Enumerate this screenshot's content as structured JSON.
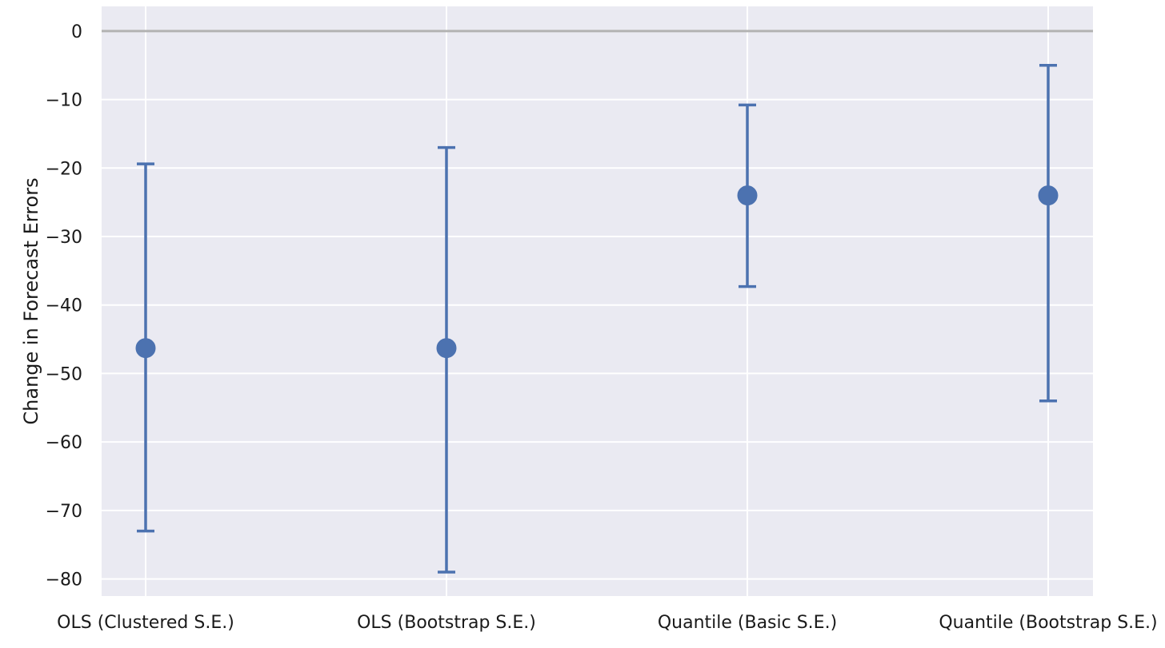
{
  "chart_data": {
    "type": "scatter",
    "chart_kind": "point estimates with error bars",
    "title": "",
    "xlabel": "",
    "ylabel": "Change in Forecast Errors",
    "categories": [
      "OLS (Clustered S.E.)",
      "OLS (Bootstrap S.E.)",
      "Quantile (Basic S.E.)",
      "Quantile (Bootstrap S.E.)"
    ],
    "points": [
      {
        "category": "OLS (Clustered S.E.)",
        "estimate": -46.3,
        "lower": -73.0,
        "upper": -19.4
      },
      {
        "category": "OLS (Bootstrap S.E.)",
        "estimate": -46.3,
        "lower": -79.0,
        "upper": -17.0
      },
      {
        "category": "Quantile (Basic S.E.)",
        "estimate": -24.0,
        "lower": -37.3,
        "upper": -10.8
      },
      {
        "category": "Quantile (Bootstrap S.E.)",
        "estimate": -24.0,
        "lower": -54.0,
        "upper": -5.0
      }
    ],
    "yticks": [
      0,
      -10,
      -20,
      -30,
      -40,
      -50,
      -60,
      -70,
      -80
    ],
    "ytick_labels": [
      "0",
      "−10",
      "−20",
      "−30",
      "−40",
      "−50",
      "−60",
      "−70",
      "−80"
    ],
    "ylim": [
      -82.5,
      3.6
    ],
    "reference_line": 0,
    "grid": true,
    "legend": "none",
    "colors": {
      "background": "#eaeaf2",
      "grid": "#ffffff",
      "series": "#4c72b0",
      "reference_line": "#b3b3b3"
    }
  }
}
